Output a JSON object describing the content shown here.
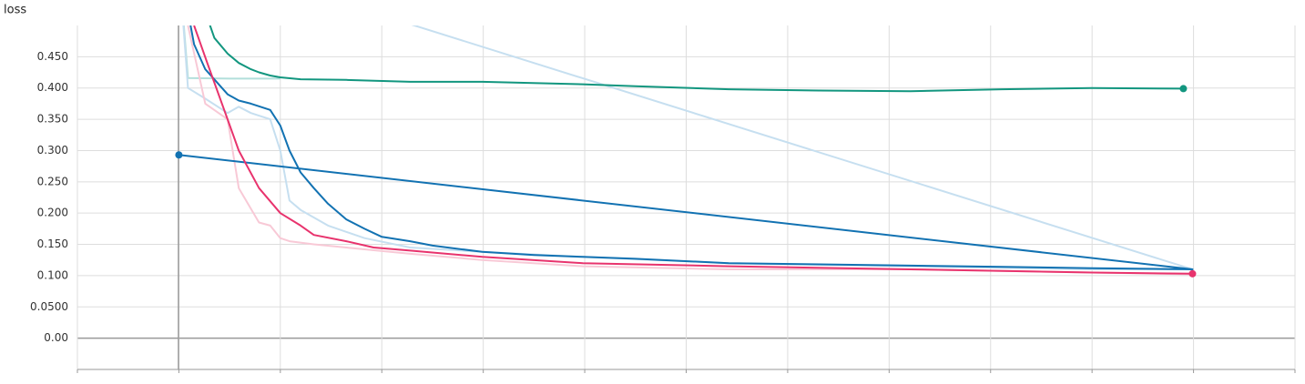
{
  "chart_data": {
    "type": "line",
    "title": "loss",
    "xlim": [
      0,
      12
    ],
    "xticks": [
      0,
      1,
      2,
      3,
      4,
      5,
      6,
      7,
      8,
      9,
      10,
      11,
      12
    ],
    "ylim": [
      -0.05,
      0.5
    ],
    "yticks": [
      {
        "value": 0,
        "label": "0.00"
      },
      {
        "value": 0.05,
        "label": "0.0500"
      },
      {
        "value": 0.1,
        "label": "0.100"
      },
      {
        "value": 0.15,
        "label": "0.150"
      },
      {
        "value": 0.2,
        "label": "0.200"
      },
      {
        "value": 0.25,
        "label": "0.250"
      },
      {
        "value": 0.3,
        "label": "0.300"
      },
      {
        "value": 0.35,
        "label": "0.350"
      },
      {
        "value": 0.4,
        "label": "0.400"
      },
      {
        "value": 0.45,
        "label": "0.450"
      }
    ],
    "grid": true,
    "series": [
      {
        "color": "#b2dfdb",
        "end_marker": false,
        "x": [
          1.0,
          1.09,
          1.5,
          2.0
        ],
        "values": [
          0.6,
          0.416,
          0.415,
          0.415
        ]
      },
      {
        "color": "#c6dff0",
        "end_marker": false,
        "x": [
          1.0,
          1.09,
          1.26,
          1.48,
          1.59,
          1.71,
          1.9,
          2.0,
          2.09,
          2.2,
          2.47,
          2.83,
          3.28,
          3.99,
          4.98,
          6.42,
          8.21,
          10.0,
          10.99,
          1.0
        ],
        "values": [
          0.6,
          0.4,
          0.383,
          0.36,
          0.37,
          0.36,
          0.35,
          0.3,
          0.22,
          0.205,
          0.18,
          0.16,
          0.145,
          0.138,
          0.13,
          0.12,
          0.115,
          0.11,
          0.11,
          0.618
        ]
      },
      {
        "color": "#f8c9d6",
        "end_marker": false,
        "x": [
          1.09,
          1.26,
          1.48,
          1.59,
          1.79,
          1.9,
          2.0,
          2.09,
          2.33,
          2.65,
          3.28,
          3.99,
          4.98,
          6.42,
          8.21,
          10.0,
          10.99
        ],
        "values": [
          0.5,
          0.375,
          0.35,
          0.24,
          0.185,
          0.18,
          0.16,
          0.155,
          0.15,
          0.145,
          0.135,
          0.125,
          0.115,
          0.11,
          0.11,
          0.105,
          0.102
        ]
      },
      {
        "color": "#12967f",
        "end_marker": true,
        "x": [
          1.2,
          1.35,
          1.48,
          1.59,
          1.71,
          1.79,
          1.9,
          2.0,
          2.2,
          2.65,
          3.28,
          3.99,
          4.98,
          5.5,
          6.42,
          7.31,
          8.21,
          9.11,
          10.0,
          10.9
        ],
        "values": [
          0.55,
          0.48,
          0.455,
          0.44,
          0.43,
          0.425,
          0.42,
          0.417,
          0.414,
          0.413,
          0.41,
          0.41,
          0.406,
          0.403,
          0.398,
          0.396,
          0.395,
          0.398,
          0.4,
          0.399
        ]
      },
      {
        "color": "#1272b2",
        "end_marker": true,
        "x": [
          1.0,
          1.15,
          1.26,
          1.48,
          1.59,
          1.71,
          1.9,
          2.0,
          2.09,
          2.2,
          2.33,
          2.47,
          2.65,
          2.83,
          3.0,
          3.28,
          3.5,
          3.99,
          4.5,
          4.98,
          5.5,
          6.42,
          7.31,
          8.21,
          9.11,
          10.0,
          10.99,
          1.0
        ],
        "values": [
          0.6,
          0.47,
          0.43,
          0.39,
          0.38,
          0.375,
          0.365,
          0.34,
          0.3,
          0.265,
          0.24,
          0.215,
          0.19,
          0.175,
          0.162,
          0.155,
          0.148,
          0.138,
          0.133,
          0.13,
          0.127,
          0.12,
          0.118,
          0.116,
          0.114,
          0.112,
          0.11,
          0.293
        ]
      },
      {
        "color": "#e8336d",
        "end_marker": true,
        "x": [
          1.15,
          1.28,
          1.48,
          1.59,
          1.79,
          2.0,
          2.2,
          2.33,
          2.65,
          2.92,
          3.28,
          3.99,
          4.98,
          6.42,
          8.21,
          10.0,
          10.99
        ],
        "values": [
          0.5,
          0.44,
          0.35,
          0.3,
          0.24,
          0.2,
          0.18,
          0.165,
          0.155,
          0.145,
          0.14,
          0.13,
          0.12,
          0.115,
          0.11,
          0.105,
          0.103
        ]
      }
    ]
  }
}
